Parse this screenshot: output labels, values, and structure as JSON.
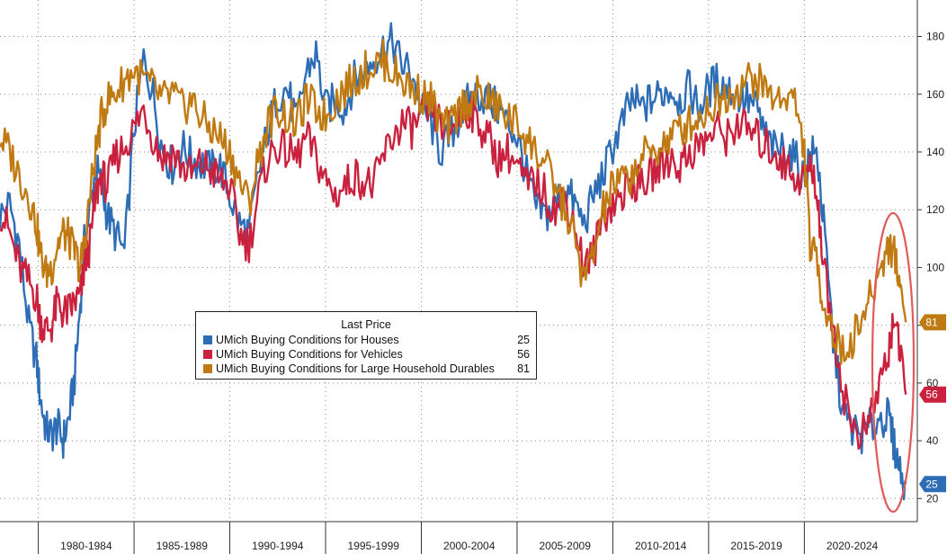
{
  "chart_data": {
    "type": "line",
    "xlabel": "",
    "ylabel": "",
    "ylim": [
      12,
      192
    ],
    "xlim": [
      1978,
      2025.9
    ],
    "y_ticks": [
      20,
      40,
      60,
      80,
      100,
      120,
      140,
      160,
      180
    ],
    "x_period_labels": [
      "1980-1984",
      "1985-1989",
      "1990-1994",
      "1995-1999",
      "2000-2004",
      "2005-2009",
      "2010-2014",
      "2015-2019",
      "2020-2024"
    ],
    "grid": true,
    "legend": {
      "title": "Last Price",
      "placement": "center-left"
    },
    "series": [
      {
        "name": "UMich Buying Conditions for Houses",
        "color": "#2d6db5",
        "last_value": 25,
        "x": [
          1978.0,
          1978.5,
          1979.0,
          1979.5,
          1979.9,
          1980.1,
          1980.4,
          1980.7,
          1981.0,
          1981.3,
          1981.6,
          1981.9,
          1982.2,
          1982.4,
          1982.7,
          1983.0,
          1983.3,
          1983.6,
          1984.0,
          1984.5,
          1985.0,
          1985.5,
          1986.0,
          1986.5,
          1987.0,
          1987.5,
          1988.0,
          1988.5,
          1989.0,
          1989.5,
          1990.0,
          1990.5,
          1991.0,
          1991.5,
          1992.0,
          1992.5,
          1993.0,
          1993.5,
          1994.0,
          1994.5,
          1995.0,
          1995.5,
          1996.0,
          1996.5,
          1997.0,
          1997.5,
          1998.0,
          1998.5,
          1999.0,
          1999.5,
          2000.0,
          2000.5,
          2001.0,
          2001.5,
          2002.0,
          2002.5,
          2003.0,
          2003.5,
          2004.0,
          2004.5,
          2005.0,
          2005.5,
          2006.0,
          2006.5,
          2007.0,
          2007.5,
          2008.0,
          2008.5,
          2009.0,
          2009.5,
          2010.0,
          2010.5,
          2011.0,
          2011.5,
          2012.0,
          2012.5,
          2013.0,
          2013.5,
          2014.0,
          2014.5,
          2015.0,
          2015.5,
          2016.0,
          2016.5,
          2017.0,
          2017.5,
          2018.0,
          2018.5,
          2019.0,
          2019.5,
          2020.0,
          2020.3,
          2020.7,
          2021.0,
          2021.5,
          2022.0,
          2022.5,
          2023.0,
          2023.5,
          2024.0,
          2024.4,
          2024.7,
          2025.0,
          2025.3
        ],
        "values": [
          118,
          122,
          108,
          80,
          68,
          55,
          44,
          42,
          45,
          40,
          48,
          62,
          88,
          108,
          120,
          135,
          128,
          118,
          112,
          105,
          148,
          172,
          160,
          140,
          135,
          142,
          138,
          136,
          134,
          135,
          125,
          115,
          112,
          132,
          148,
          160,
          162,
          150,
          168,
          174,
          155,
          158,
          155,
          165,
          168,
          172,
          176,
          178,
          170,
          168,
          155,
          150,
          140,
          145,
          152,
          158,
          160,
          158,
          155,
          150,
          145,
          132,
          120,
          118,
          122,
          128,
          122,
          115,
          125,
          132,
          142,
          150,
          158,
          155,
          158,
          160,
          162,
          158,
          162,
          155,
          162,
          165,
          162,
          160,
          158,
          155,
          145,
          140,
          142,
          138,
          130,
          140,
          138,
          115,
          75,
          50,
          44,
          42,
          45,
          48,
          48,
          38,
          30,
          25
        ]
      },
      {
        "name": "UMich Buying Conditions for Vehicles",
        "color": "#c9213e",
        "last_value": 56,
        "x": [
          1978.0,
          1978.5,
          1979.0,
          1979.5,
          1979.9,
          1980.1,
          1980.4,
          1980.7,
          1981.0,
          1981.3,
          1981.6,
          1981.9,
          1982.2,
          1982.4,
          1982.7,
          1983.0,
          1983.3,
          1983.6,
          1984.0,
          1984.5,
          1985.0,
          1985.5,
          1986.0,
          1986.5,
          1987.0,
          1987.5,
          1988.0,
          1988.5,
          1989.0,
          1989.5,
          1990.0,
          1990.5,
          1991.0,
          1991.5,
          1992.0,
          1992.5,
          1993.0,
          1993.5,
          1994.0,
          1994.5,
          1995.0,
          1995.5,
          1996.0,
          1996.5,
          1997.0,
          1997.5,
          1998.0,
          1998.5,
          1999.0,
          1999.5,
          2000.0,
          2000.5,
          2001.0,
          2001.5,
          2002.0,
          2002.5,
          2003.0,
          2003.5,
          2004.0,
          2004.5,
          2005.0,
          2005.5,
          2006.0,
          2006.5,
          2007.0,
          2007.5,
          2008.0,
          2008.5,
          2009.0,
          2009.5,
          2010.0,
          2010.5,
          2011.0,
          2011.5,
          2012.0,
          2012.5,
          2013.0,
          2013.5,
          2014.0,
          2014.5,
          2015.0,
          2015.5,
          2016.0,
          2016.5,
          2017.0,
          2017.5,
          2018.0,
          2018.5,
          2019.0,
          2019.5,
          2020.0,
          2020.3,
          2020.7,
          2021.0,
          2021.5,
          2022.0,
          2022.5,
          2023.0,
          2023.5,
          2024.0,
          2024.4,
          2024.7,
          2025.0,
          2025.3
        ],
        "values": [
          120,
          112,
          100,
          95,
          90,
          82,
          78,
          80,
          88,
          84,
          85,
          88,
          90,
          100,
          108,
          125,
          132,
          128,
          138,
          142,
          148,
          155,
          145,
          138,
          140,
          135,
          132,
          136,
          134,
          130,
          128,
          112,
          108,
          125,
          138,
          142,
          140,
          138,
          145,
          138,
          130,
          125,
          128,
          132,
          130,
          128,
          138,
          145,
          150,
          148,
          152,
          155,
          150,
          148,
          152,
          155,
          150,
          145,
          138,
          140,
          135,
          128,
          130,
          125,
          120,
          125,
          115,
          100,
          105,
          118,
          122,
          125,
          130,
          128,
          132,
          135,
          138,
          135,
          140,
          142,
          145,
          148,
          145,
          150,
          148,
          145,
          142,
          140,
          135,
          132,
          130,
          135,
          125,
          100,
          80,
          58,
          45,
          42,
          48,
          62,
          70,
          85,
          68,
          56
        ]
      },
      {
        "name": "UMich Buying Conditions for Large Household Durables",
        "color": "#c07a12",
        "last_value": 81,
        "x": [
          1978.0,
          1978.5,
          1979.0,
          1979.5,
          1979.9,
          1980.1,
          1980.4,
          1980.7,
          1981.0,
          1981.3,
          1981.6,
          1981.9,
          1982.2,
          1982.4,
          1982.7,
          1983.0,
          1983.3,
          1983.6,
          1984.0,
          1984.5,
          1985.0,
          1985.5,
          1986.0,
          1986.5,
          1987.0,
          1987.5,
          1988.0,
          1988.5,
          1989.0,
          1989.5,
          1990.0,
          1990.5,
          1991.0,
          1991.5,
          1992.0,
          1992.5,
          1993.0,
          1993.5,
          1994.0,
          1994.5,
          1995.0,
          1995.5,
          1996.0,
          1996.5,
          1997.0,
          1997.5,
          1998.0,
          1998.5,
          1999.0,
          1999.5,
          2000.0,
          2000.5,
          2001.0,
          2001.5,
          2002.0,
          2002.5,
          2003.0,
          2003.5,
          2004.0,
          2004.5,
          2005.0,
          2005.5,
          2006.0,
          2006.5,
          2007.0,
          2007.5,
          2008.0,
          2008.5,
          2009.0,
          2009.5,
          2010.0,
          2010.5,
          2011.0,
          2011.5,
          2012.0,
          2012.5,
          2013.0,
          2013.5,
          2014.0,
          2014.5,
          2015.0,
          2015.5,
          2016.0,
          2016.5,
          2017.0,
          2017.5,
          2018.0,
          2018.5,
          2019.0,
          2019.5,
          2020.0,
          2020.3,
          2020.7,
          2021.0,
          2021.5,
          2022.0,
          2022.5,
          2023.0,
          2023.5,
          2024.0,
          2024.4,
          2024.7,
          2025.0,
          2025.3
        ],
        "values": [
          145,
          140,
          132,
          125,
          115,
          105,
          98,
          100,
          108,
          112,
          110,
          105,
          100,
          108,
          125,
          140,
          152,
          158,
          160,
          165,
          168,
          165,
          162,
          158,
          160,
          155,
          158,
          152,
          148,
          145,
          140,
          130,
          122,
          138,
          150,
          155,
          152,
          150,
          158,
          155,
          152,
          158,
          162,
          165,
          168,
          170,
          172,
          168,
          165,
          162,
          160,
          158,
          150,
          148,
          155,
          158,
          160,
          158,
          155,
          152,
          150,
          145,
          140,
          135,
          128,
          120,
          110,
          95,
          105,
          120,
          128,
          130,
          132,
          138,
          140,
          142,
          145,
          148,
          150,
          152,
          155,
          158,
          160,
          162,
          165,
          165,
          162,
          158,
          160,
          158,
          140,
          108,
          100,
          88,
          78,
          70,
          75,
          82,
          90,
          100,
          108,
          105,
          95,
          81
        ]
      }
    ]
  }
}
